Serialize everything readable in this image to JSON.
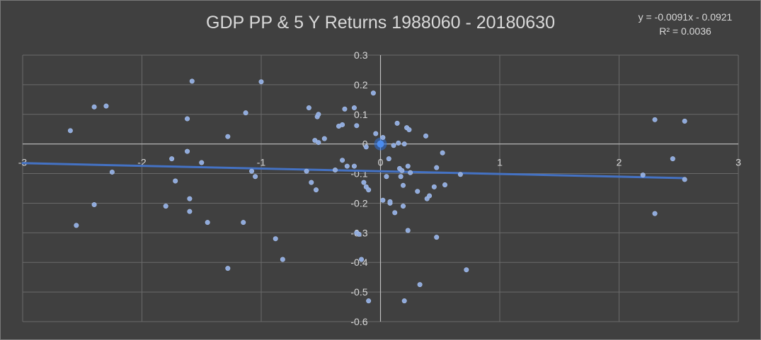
{
  "chart_data": {
    "type": "scatter",
    "title": "GDP PP & 5 Y Returns 1988060 - 20180630",
    "xlabel": "",
    "ylabel": "",
    "xlim": [
      -3,
      3
    ],
    "ylim": [
      -0.6,
      0.3
    ],
    "x_ticks": [
      "-3",
      "-2",
      "-1",
      "0",
      "1",
      "2",
      "3"
    ],
    "y_ticks": [
      "0.3",
      "0.2",
      "0.1",
      "0",
      "-0.1",
      "-0.2",
      "-0.3",
      "-0.4",
      "-0.5",
      "-0.6"
    ],
    "grid": true,
    "legend": "none",
    "colors": {
      "background": "#404040",
      "grid": "#6a6a6a",
      "axis": "#bfbfbf",
      "point": "#8faadc",
      "trendline": "#4472c4",
      "text": "#d9d9d9"
    },
    "trendline": {
      "slope": -0.0091,
      "intercept": -0.0921,
      "equation": "y = -0.0091x - 0.0921",
      "r_squared": "R² = 0.0036"
    },
    "highlight_point": {
      "x": 0,
      "y": 0
    },
    "points": [
      {
        "x": -2.6,
        "y": 0.045
      },
      {
        "x": -2.55,
        "y": -0.275
      },
      {
        "x": -2.4,
        "y": 0.125
      },
      {
        "x": -2.4,
        "y": -0.205
      },
      {
        "x": -2.3,
        "y": 0.128
      },
      {
        "x": -2.25,
        "y": -0.095
      },
      {
        "x": -1.8,
        "y": -0.21
      },
      {
        "x": -1.75,
        "y": -0.05
      },
      {
        "x": -1.72,
        "y": -0.125
      },
      {
        "x": -1.62,
        "y": 0.085
      },
      {
        "x": -1.62,
        "y": -0.025
      },
      {
        "x": -1.6,
        "y": -0.185
      },
      {
        "x": -1.6,
        "y": -0.228
      },
      {
        "x": -1.58,
        "y": 0.212
      },
      {
        "x": -1.5,
        "y": -0.063
      },
      {
        "x": -1.45,
        "y": -0.265
      },
      {
        "x": -1.28,
        "y": 0.025
      },
      {
        "x": -1.28,
        "y": -0.42
      },
      {
        "x": -1.15,
        "y": -0.265
      },
      {
        "x": -1.13,
        "y": 0.105
      },
      {
        "x": -1.08,
        "y": -0.092
      },
      {
        "x": -1.05,
        "y": -0.11
      },
      {
        "x": -1.0,
        "y": 0.21
      },
      {
        "x": -0.88,
        "y": -0.32
      },
      {
        "x": -0.82,
        "y": -0.39
      },
      {
        "x": -0.62,
        "y": -0.092
      },
      {
        "x": -0.6,
        "y": 0.122
      },
      {
        "x": -0.58,
        "y": -0.13
      },
      {
        "x": -0.55,
        "y": 0.012
      },
      {
        "x": -0.54,
        "y": -0.155
      },
      {
        "x": -0.53,
        "y": 0.092
      },
      {
        "x": -0.52,
        "y": 0.1
      },
      {
        "x": -0.52,
        "y": 0.005
      },
      {
        "x": -0.47,
        "y": 0.018
      },
      {
        "x": -0.38,
        "y": -0.088
      },
      {
        "x": -0.35,
        "y": 0.06
      },
      {
        "x": -0.32,
        "y": 0.065
      },
      {
        "x": -0.32,
        "y": -0.055
      },
      {
        "x": -0.3,
        "y": 0.118
      },
      {
        "x": -0.28,
        "y": -0.075
      },
      {
        "x": -0.22,
        "y": 0.122
      },
      {
        "x": -0.22,
        "y": -0.075
      },
      {
        "x": -0.2,
        "y": 0.062
      },
      {
        "x": -0.2,
        "y": -0.3
      },
      {
        "x": -0.18,
        "y": -0.305
      },
      {
        "x": -0.16,
        "y": -0.39
      },
      {
        "x": -0.14,
        "y": -0.13
      },
      {
        "x": -0.12,
        "y": -0.145
      },
      {
        "x": -0.12,
        "y": -0.01
      },
      {
        "x": -0.1,
        "y": -0.155
      },
      {
        "x": -0.1,
        "y": -0.53
      },
      {
        "x": -0.06,
        "y": 0.172
      },
      {
        "x": -0.04,
        "y": 0.035
      },
      {
        "x": 0.02,
        "y": 0.022
      },
      {
        "x": 0.02,
        "y": -0.19
      },
      {
        "x": 0.05,
        "y": -0.11
      },
      {
        "x": 0.07,
        "y": -0.05
      },
      {
        "x": 0.08,
        "y": -0.2
      },
      {
        "x": 0.08,
        "y": -0.195
      },
      {
        "x": 0.11,
        "y": -0.005
      },
      {
        "x": 0.12,
        "y": -0.232
      },
      {
        "x": 0.14,
        "y": 0.07
      },
      {
        "x": 0.15,
        "y": 0.003
      },
      {
        "x": 0.16,
        "y": -0.083
      },
      {
        "x": 0.17,
        "y": -0.11
      },
      {
        "x": 0.18,
        "y": -0.09
      },
      {
        "x": 0.19,
        "y": -0.14
      },
      {
        "x": 0.19,
        "y": -0.21
      },
      {
        "x": 0.2,
        "y": 0.0
      },
      {
        "x": 0.2,
        "y": -0.53
      },
      {
        "x": 0.22,
        "y": 0.055
      },
      {
        "x": 0.23,
        "y": -0.075
      },
      {
        "x": 0.23,
        "y": -0.292
      },
      {
        "x": 0.24,
        "y": 0.048
      },
      {
        "x": 0.25,
        "y": -0.097
      },
      {
        "x": 0.31,
        "y": -0.16
      },
      {
        "x": 0.33,
        "y": -0.475
      },
      {
        "x": 0.38,
        "y": 0.027
      },
      {
        "x": 0.39,
        "y": -0.185
      },
      {
        "x": 0.41,
        "y": -0.175
      },
      {
        "x": 0.45,
        "y": -0.145
      },
      {
        "x": 0.47,
        "y": -0.08
      },
      {
        "x": 0.47,
        "y": -0.315
      },
      {
        "x": 0.52,
        "y": -0.03
      },
      {
        "x": 0.54,
        "y": -0.138
      },
      {
        "x": 0.67,
        "y": -0.103
      },
      {
        "x": 0.72,
        "y": -0.425
      },
      {
        "x": 2.2,
        "y": -0.105
      },
      {
        "x": 2.3,
        "y": 0.082
      },
      {
        "x": 2.3,
        "y": -0.235
      },
      {
        "x": 2.45,
        "y": -0.05
      },
      {
        "x": 2.55,
        "y": 0.077
      },
      {
        "x": 2.55,
        "y": -0.12
      }
    ]
  }
}
